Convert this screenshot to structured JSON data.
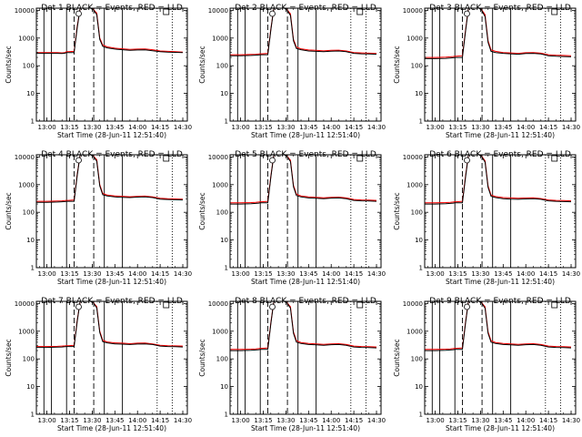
{
  "chart_data": {
    "type": "line",
    "layout": "3x3 grid",
    "title_template": "Det {n}  BLACK = Events, RED = LLD",
    "xlabel": "Start Time (28-Jun-11 12:51:40)",
    "ylabel": "Counts/sec",
    "yscale": "log",
    "ylim": [
      1,
      12000
    ],
    "yticks": [
      1,
      10,
      100,
      1000,
      10000
    ],
    "ytick_labels": [
      "1",
      "10",
      "100",
      "1000",
      "10000"
    ],
    "xlim": [
      "12:53",
      "14:33"
    ],
    "xticks": [
      "13:00",
      "13:15",
      "13:30",
      "13:45",
      "14:00",
      "14:15",
      "14:30"
    ],
    "grid": false,
    "colors": {
      "events": "#000000",
      "lld": "#ff0000"
    },
    "vertical_markers": {
      "solid": [
        "12:58",
        "13:03",
        "13:13",
        "13:38",
        "13:50"
      ],
      "dashed": [
        "13:18",
        "13:31"
      ],
      "dotted": [
        "14:13",
        "14:23"
      ]
    },
    "series_x": [
      "12:53",
      "13:00",
      "13:07",
      "13:10",
      "13:12",
      "13:13",
      "13:14",
      "13:18",
      "13:20",
      "13:22",
      "13:26",
      "13:30",
      "13:33",
      "13:35",
      "13:37",
      "13:40",
      "13:45",
      "13:50",
      "13:55",
      "14:00",
      "14:05",
      "14:10",
      "14:15",
      "14:20",
      "14:25",
      "14:30"
    ],
    "panels": [
      {
        "det": "1",
        "events": [
          280,
          280,
          280,
          275,
          285,
          300,
          300,
          300,
          2200,
          12000,
          12000,
          12000,
          7000,
          900,
          500,
          440,
          400,
          380,
          360,
          370,
          375,
          350,
          320,
          310,
          305,
          300
        ],
        "lld": [
          300,
          300,
          300,
          290,
          300,
          320,
          320,
          330,
          2500,
          12000,
          12000,
          12000,
          8000,
          1000,
          560,
          480,
          430,
          410,
          390,
          400,
          405,
          380,
          340,
          330,
          320,
          310
        ]
      },
      {
        "det": "2",
        "events": [
          230,
          230,
          235,
          240,
          245,
          250,
          250,
          250,
          1900,
          12000,
          12000,
          12000,
          6500,
          800,
          420,
          380,
          340,
          330,
          320,
          335,
          340,
          320,
          280,
          270,
          265,
          260
        ],
        "lld": [
          250,
          250,
          255,
          260,
          265,
          270,
          270,
          280,
          2100,
          12000,
          12000,
          12000,
          7500,
          900,
          470,
          410,
          370,
          360,
          345,
          360,
          365,
          340,
          300,
          290,
          285,
          280
        ]
      },
      {
        "det": "3",
        "events": [
          180,
          180,
          185,
          190,
          195,
          200,
          200,
          200,
          1600,
          12000,
          12000,
          12000,
          6000,
          700,
          330,
          300,
          280,
          270,
          260,
          275,
          280,
          265,
          230,
          220,
          215,
          210
        ],
        "lld": [
          200,
          200,
          205,
          210,
          215,
          220,
          220,
          230,
          1800,
          12000,
          12000,
          12000,
          7000,
          800,
          370,
          330,
          300,
          290,
          280,
          295,
          300,
          285,
          250,
          240,
          235,
          230
        ]
      },
      {
        "det": "4",
        "events": [
          230,
          230,
          235,
          240,
          245,
          250,
          250,
          250,
          2000,
          12000,
          12000,
          12000,
          7000,
          900,
          430,
          390,
          360,
          350,
          340,
          355,
          360,
          340,
          300,
          290,
          285,
          280
        ],
        "lld": [
          250,
          250,
          255,
          260,
          265,
          270,
          270,
          280,
          2200,
          12000,
          12000,
          12000,
          8000,
          1000,
          480,
          420,
          390,
          380,
          365,
          380,
          385,
          360,
          320,
          310,
          305,
          300
        ]
      },
      {
        "det": "5",
        "events": [
          200,
          200,
          205,
          210,
          215,
          220,
          220,
          220,
          1800,
          12000,
          12000,
          12000,
          6800,
          850,
          400,
          360,
          330,
          320,
          310,
          325,
          330,
          310,
          270,
          260,
          255,
          250
        ],
        "lld": [
          220,
          220,
          225,
          230,
          235,
          240,
          240,
          250,
          2000,
          12000,
          12000,
          12000,
          7600,
          950,
          450,
          390,
          360,
          350,
          335,
          350,
          355,
          330,
          290,
          280,
          275,
          270
        ]
      },
      {
        "det": "6",
        "events": [
          200,
          200,
          205,
          210,
          215,
          220,
          220,
          220,
          1700,
          12000,
          12000,
          12000,
          6500,
          800,
          380,
          340,
          310,
          300,
          295,
          305,
          310,
          295,
          260,
          250,
          245,
          240
        ],
        "lld": [
          220,
          220,
          225,
          230,
          235,
          240,
          240,
          250,
          1900,
          12000,
          12000,
          12000,
          7300,
          900,
          420,
          370,
          340,
          330,
          320,
          330,
          335,
          315,
          280,
          270,
          265,
          260
        ]
      },
      {
        "det": "7",
        "events": [
          260,
          260,
          265,
          270,
          275,
          280,
          280,
          280,
          2100,
          12000,
          12000,
          12000,
          7000,
          900,
          420,
          380,
          350,
          340,
          330,
          345,
          350,
          330,
          290,
          280,
          275,
          270
        ],
        "lld": [
          280,
          280,
          285,
          290,
          295,
          300,
          300,
          310,
          2300,
          12000,
          12000,
          12000,
          7800,
          1000,
          470,
          410,
          380,
          370,
          355,
          370,
          375,
          350,
          310,
          300,
          295,
          290
        ]
      },
      {
        "det": "8",
        "events": [
          200,
          200,
          205,
          210,
          215,
          220,
          220,
          220,
          1800,
          12000,
          12000,
          12000,
          6800,
          850,
          400,
          360,
          330,
          320,
          310,
          325,
          330,
          310,
          270,
          260,
          255,
          250
        ],
        "lld": [
          220,
          220,
          225,
          230,
          235,
          240,
          240,
          250,
          2000,
          12000,
          12000,
          12000,
          7600,
          950,
          450,
          390,
          360,
          350,
          335,
          350,
          355,
          330,
          290,
          280,
          275,
          270
        ]
      },
      {
        "det": "9",
        "events": [
          200,
          200,
          205,
          210,
          215,
          220,
          220,
          220,
          1800,
          12000,
          12000,
          12000,
          6800,
          850,
          400,
          360,
          330,
          320,
          310,
          325,
          330,
          310,
          270,
          260,
          255,
          250
        ],
        "lld": [
          220,
          220,
          225,
          230,
          235,
          240,
          240,
          250,
          2000,
          12000,
          12000,
          12000,
          7600,
          950,
          450,
          390,
          360,
          350,
          335,
          350,
          355,
          330,
          290,
          280,
          275,
          270
        ]
      }
    ]
  }
}
